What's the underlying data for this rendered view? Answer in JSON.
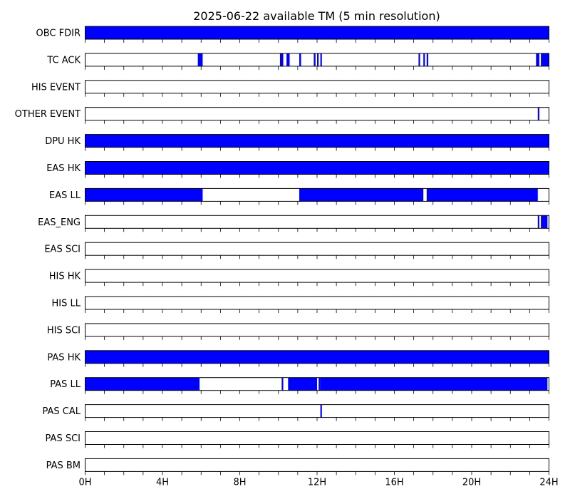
{
  "chart_data": {
    "type": "bar",
    "title": "2025-06-22 available TM (5 min resolution)",
    "xlim": [
      0,
      24
    ],
    "x_unit": "hours",
    "x_ticks": [
      {
        "value": 0,
        "label": "0H"
      },
      {
        "value": 4,
        "label": "4H"
      },
      {
        "value": 8,
        "label": "8H"
      },
      {
        "value": 12,
        "label": "12H"
      },
      {
        "value": 16,
        "label": "16H"
      },
      {
        "value": 20,
        "label": "20H"
      },
      {
        "value": 24,
        "label": "24H"
      }
    ],
    "minor_tick_step": 1,
    "grid": false,
    "bar_color": "#0000ff",
    "series": [
      {
        "name": "OBC FDIR",
        "intervals": [
          [
            0,
            24
          ]
        ]
      },
      {
        "name": "TC ACK",
        "intervals": [
          [
            5.83,
            6.08
          ],
          [
            10.08,
            10.25
          ],
          [
            10.42,
            10.58
          ],
          [
            11.08,
            11.17
          ],
          [
            11.83,
            11.92
          ],
          [
            12.0,
            12.08
          ],
          [
            12.17,
            12.25
          ],
          [
            17.25,
            17.33
          ],
          [
            17.5,
            17.58
          ],
          [
            17.67,
            17.75
          ],
          [
            23.33,
            23.5
          ],
          [
            23.58,
            24.0
          ]
        ]
      },
      {
        "name": "HIS EVENT",
        "intervals": []
      },
      {
        "name": "OTHER EVENT",
        "intervals": [
          [
            23.42,
            23.5
          ]
        ]
      },
      {
        "name": "DPU HK",
        "intervals": [
          [
            0,
            24
          ]
        ]
      },
      {
        "name": "EAS HK",
        "intervals": [
          [
            0,
            24
          ]
        ]
      },
      {
        "name": "EAS LL",
        "intervals": [
          [
            0,
            6.08
          ],
          [
            11.08,
            17.5
          ],
          [
            17.67,
            23.42
          ]
        ]
      },
      {
        "name": "EAS_ENG",
        "intervals": [
          [
            23.42,
            23.5
          ],
          [
            23.58,
            23.92
          ]
        ]
      },
      {
        "name": "EAS SCI",
        "intervals": []
      },
      {
        "name": "HIS HK",
        "intervals": []
      },
      {
        "name": "HIS LL",
        "intervals": []
      },
      {
        "name": "HIS SCI",
        "intervals": []
      },
      {
        "name": "PAS HK",
        "intervals": [
          [
            0,
            24
          ]
        ]
      },
      {
        "name": "PAS LL",
        "intervals": [
          [
            0,
            5.92
          ],
          [
            10.17,
            10.25
          ],
          [
            10.5,
            12.0
          ],
          [
            12.08,
            12.17
          ],
          [
            12.17,
            23.92
          ]
        ]
      },
      {
        "name": "PAS CAL",
        "intervals": [
          [
            12.17,
            12.25
          ]
        ]
      },
      {
        "name": "PAS SCI",
        "intervals": []
      },
      {
        "name": "PAS BM",
        "intervals": []
      }
    ]
  }
}
